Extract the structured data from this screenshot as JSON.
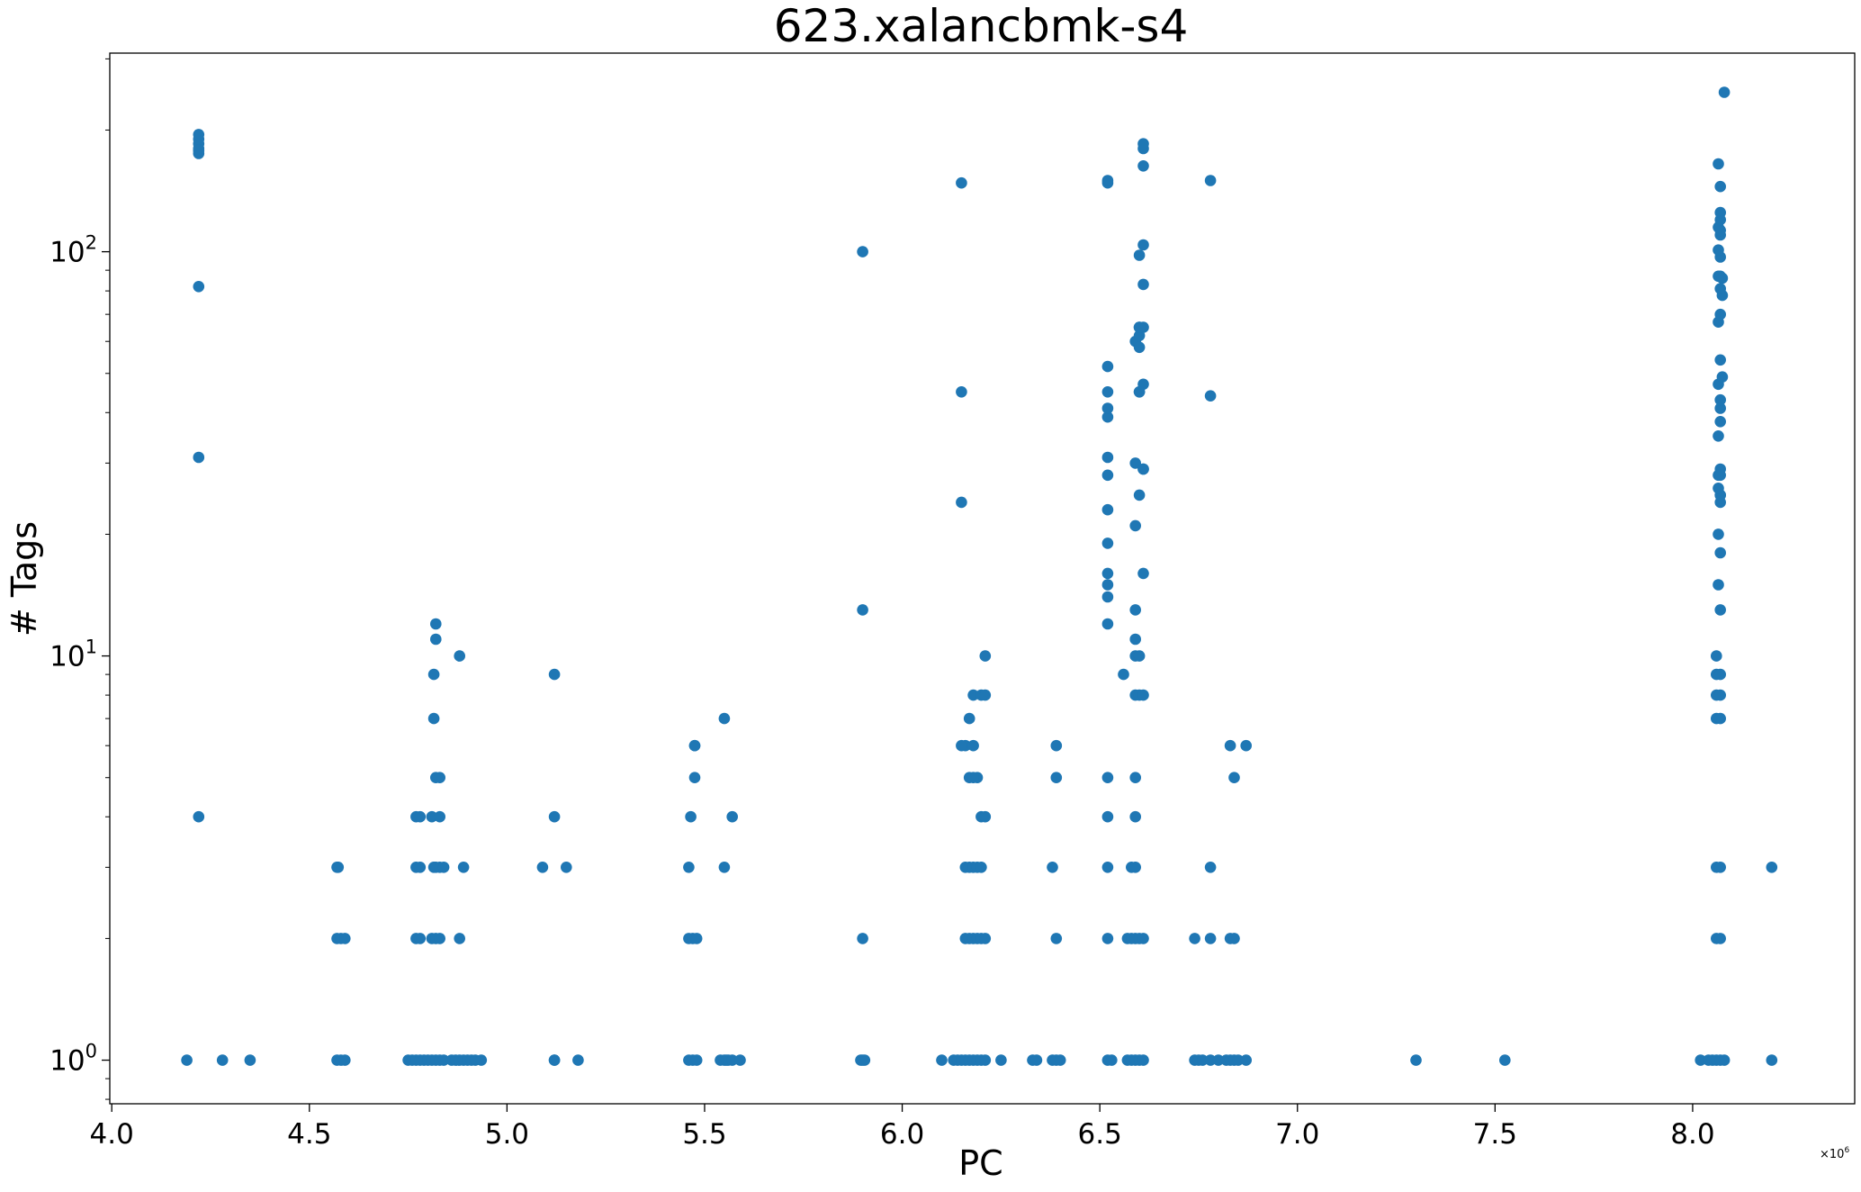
{
  "chart_data": {
    "type": "scatter",
    "title": "623.xalancbmk-s4",
    "xlabel": "PC",
    "ylabel": "# Tags",
    "x_offset_text": "×10",
    "x_offset_exponent": "6",
    "x_scale": "linear",
    "y_scale": "log",
    "xlim": [
      3.995,
      8.41
    ],
    "ylim": [
      0.78,
      310
    ],
    "grid": false,
    "legend": "none",
    "marker_color": "#1f77b4",
    "x_ticks": [
      {
        "value": 4.0,
        "label": "4.0"
      },
      {
        "value": 4.5,
        "label": "4.5"
      },
      {
        "value": 5.0,
        "label": "5.0"
      },
      {
        "value": 5.5,
        "label": "5.5"
      },
      {
        "value": 6.0,
        "label": "6.0"
      },
      {
        "value": 6.5,
        "label": "6.5"
      },
      {
        "value": 7.0,
        "label": "7.0"
      },
      {
        "value": 7.5,
        "label": "7.5"
      },
      {
        "value": 8.0,
        "label": "8.0"
      }
    ],
    "y_ticks": [
      {
        "value": 1,
        "base": "10",
        "exp": "0"
      },
      {
        "value": 10,
        "base": "10",
        "exp": "1"
      },
      {
        "value": 100,
        "base": "10",
        "exp": "2"
      }
    ],
    "series": [
      {
        "x": [
          4.19,
          4.28,
          4.35,
          4.22,
          4.22,
          4.22,
          4.22,
          4.22,
          4.22,
          4.22,
          4.22,
          4.22,
          4.57,
          4.58,
          4.59,
          4.57,
          4.58,
          4.59,
          4.57,
          4.573,
          4.75,
          4.76,
          4.77,
          4.78,
          4.79,
          4.8,
          4.81,
          4.82,
          4.83,
          4.84,
          4.86,
          4.87,
          4.88,
          4.89,
          4.9,
          4.91,
          4.92,
          4.935,
          4.77,
          4.78,
          4.81,
          4.82,
          4.83,
          4.88,
          4.77,
          4.78,
          4.815,
          4.82,
          4.83,
          4.84,
          4.89,
          4.77,
          4.78,
          4.81,
          4.83,
          4.82,
          4.83,
          4.815,
          4.815,
          4.82,
          4.82,
          4.88,
          5.09,
          5.12,
          5.15,
          5.12,
          5.18,
          5.12,
          5.12,
          5.46,
          5.47,
          5.48,
          5.46,
          5.47,
          5.48,
          5.46,
          5.54,
          5.55,
          5.555,
          5.56,
          5.57,
          5.59,
          5.55,
          5.465,
          5.475,
          5.57,
          5.475,
          5.475,
          5.55,
          5.895,
          5.9,
          5.905,
          5.9,
          5.9,
          5.9,
          6.1,
          6.13,
          6.14,
          6.15,
          6.16,
          6.17,
          6.18,
          6.19,
          6.2,
          6.21,
          6.25,
          6.33,
          6.34,
          6.38,
          6.39,
          6.4,
          6.16,
          6.17,
          6.18,
          6.19,
          6.2,
          6.21,
          6.39,
          6.16,
          6.17,
          6.18,
          6.19,
          6.2,
          6.38,
          6.2,
          6.21,
          6.17,
          6.19,
          6.16,
          6.18,
          6.39,
          6.15,
          6.17,
          6.18,
          6.39,
          6.18,
          6.2,
          6.21,
          6.21,
          6.15,
          6.15,
          6.15,
          6.52,
          6.53,
          6.57,
          6.58,
          6.59,
          6.6,
          6.61,
          6.52,
          6.57,
          6.58,
          6.59,
          6.6,
          6.61,
          6.52,
          6.58,
          6.59,
          6.52,
          6.59,
          6.52,
          6.59,
          6.56,
          6.59,
          6.6,
          6.61,
          6.59,
          6.6,
          6.59,
          6.52,
          6.52,
          6.52,
          6.52,
          6.52,
          6.52,
          6.59,
          6.61,
          6.59,
          6.6,
          6.61,
          6.52,
          6.59,
          6.61,
          6.52,
          6.52,
          6.52,
          6.52,
          6.6,
          6.61,
          6.59,
          6.6,
          6.6,
          6.61,
          6.61,
          6.6,
          6.61,
          6.61,
          6.61,
          6.61,
          6.52,
          6.52,
          6.52,
          6.6,
          6.6,
          6.6,
          6.74,
          6.75,
          6.76,
          6.78,
          6.8,
          6.82,
          6.83,
          6.84,
          6.85,
          6.87,
          6.74,
          6.78,
          6.83,
          6.84,
          6.78,
          6.84,
          6.83,
          6.87,
          6.78,
          6.78,
          7.3,
          7.525,
          8.02,
          8.04,
          8.05,
          8.06,
          8.07,
          8.08,
          8.2,
          8.06,
          8.07,
          8.06,
          8.07,
          8.06,
          8.07,
          8.2,
          8.06,
          8.07,
          8.06,
          8.07,
          8.06,
          8.07,
          8.065,
          8.07,
          8.065,
          8.07,
          8.07,
          8.07,
          8.065,
          8.07,
          8.065,
          8.07,
          8.065,
          8.07,
          8.07,
          8.07,
          8.065,
          8.075,
          8.07,
          8.065,
          8.07,
          8.075,
          8.07,
          8.065,
          8.07,
          8.075,
          8.07,
          8.065,
          8.07,
          8.07,
          8.065,
          8.07,
          8.07,
          8.07,
          8.065,
          8.08
        ],
        "y": [
          1,
          1,
          1,
          4,
          31,
          82,
          175,
          180,
          185,
          190,
          195,
          178,
          1,
          1,
          1,
          2,
          2,
          2,
          3,
          3,
          1,
          1,
          1,
          1,
          1,
          1,
          1,
          1,
          1,
          1,
          1,
          1,
          1,
          1,
          1,
          1,
          1,
          1,
          2,
          2,
          2,
          2,
          2,
          2,
          3,
          3,
          3,
          3,
          3,
          3,
          3,
          4,
          4,
          4,
          4,
          5,
          5,
          7,
          9,
          11,
          12,
          10,
          3,
          4,
          3,
          9,
          1,
          1,
          1,
          1,
          1,
          1,
          2,
          2,
          2,
          3,
          1,
          1,
          1,
          1,
          1,
          1,
          3,
          4,
          5,
          4,
          6,
          6,
          7,
          1,
          1,
          1,
          2,
          13,
          100,
          1,
          1,
          1,
          1,
          1,
          1,
          1,
          1,
          1,
          1,
          1,
          1,
          1,
          1,
          1,
          1,
          2,
          2,
          2,
          2,
          2,
          2,
          2,
          3,
          3,
          3,
          3,
          3,
          3,
          4,
          4,
          5,
          5,
          6,
          6,
          5,
          6,
          7,
          5,
          6,
          8,
          8,
          10,
          8,
          24,
          45,
          148,
          1,
          1,
          1,
          1,
          1,
          1,
          1,
          2,
          2,
          2,
          2,
          2,
          2,
          3,
          3,
          3,
          4,
          4,
          5,
          5,
          9,
          8,
          8,
          8,
          10,
          10,
          11,
          12,
          14,
          15,
          16,
          19,
          23,
          13,
          16,
          21,
          25,
          29,
          28,
          30,
          29,
          31,
          39,
          41,
          45,
          45,
          47,
          60,
          58,
          62,
          65,
          83,
          98,
          104,
          163,
          180,
          185,
          52,
          148,
          150,
          65,
          65,
          45,
          1,
          1,
          1,
          1,
          1,
          1,
          1,
          1,
          1,
          1,
          2,
          2,
          2,
          2,
          3,
          5,
          6,
          6,
          44,
          150,
          1,
          1,
          1,
          1,
          1,
          1,
          1,
          1,
          1,
          2,
          2,
          3,
          3,
          7,
          7,
          3,
          8,
          8,
          9,
          9,
          10,
          13,
          15,
          18,
          20,
          24,
          25,
          25,
          26,
          29,
          28,
          28,
          35,
          38,
          41,
          43,
          47,
          49,
          54,
          67,
          70,
          78,
          81,
          87,
          87,
          86,
          97,
          101,
          110,
          113,
          115,
          120,
          125,
          145,
          165,
          248
        ]
      }
    ]
  }
}
